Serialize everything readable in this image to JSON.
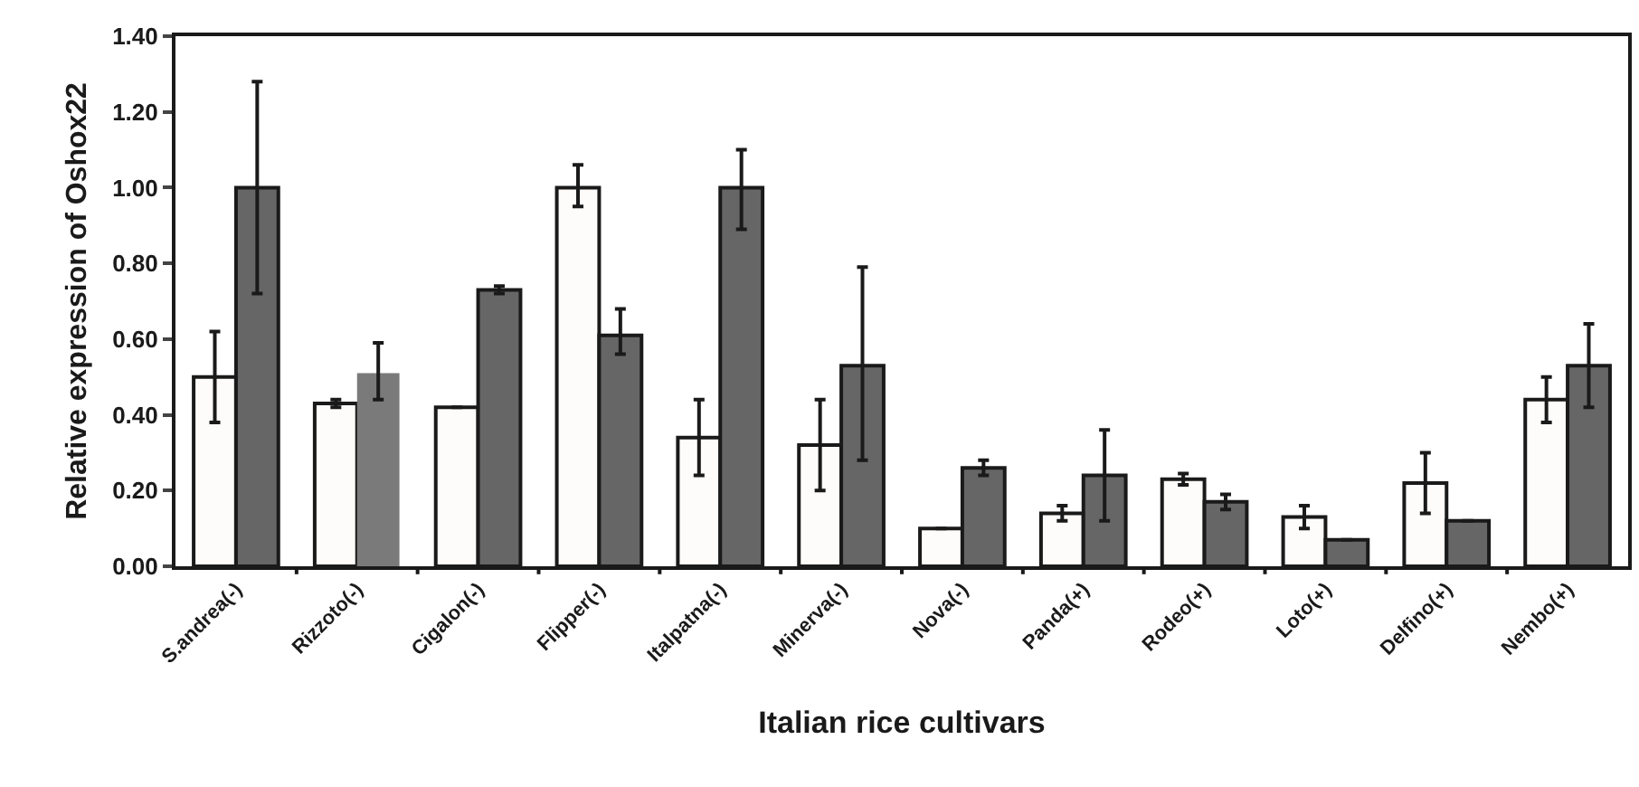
{
  "chart_data": {
    "type": "bar",
    "xlabel": "Italian rice cultivars",
    "ylabel": "Relative expression of Oshox22",
    "categories": [
      "S.andrea(-)",
      "Rizzoto(-)",
      "Cigalon(-)",
      "Flipper(-)",
      "Italpatna(-)",
      "Minerva(-)",
      "Nova(-)",
      "Panda(+)",
      "Rodeo(+)",
      "Loto(+)",
      "Delfino(+)",
      "Nembo(+)"
    ],
    "series": [
      {
        "color": "#fefcfa",
        "values": [
          0.5,
          0.43,
          0.42,
          1.0,
          0.34,
          0.32,
          0.1,
          0.14,
          0.23,
          0.13,
          0.22,
          0.44
        ],
        "errors": [
          [
            0.38,
            0.62
          ],
          0.01,
          null,
          [
            0.95,
            1.06
          ],
          [
            0.24,
            0.44
          ],
          [
            0.2,
            0.44
          ],
          null,
          0.02,
          0.015,
          0.03,
          [
            0.14,
            0.3
          ],
          [
            0.38,
            0.5
          ]
        ]
      },
      {
        "color": "#666666",
        "colors": [
          "#666666",
          "#7a7a7a",
          "#666666",
          "#666666",
          "#666666",
          "#666666",
          "#666666",
          "#666666",
          "#666666",
          "#666666",
          "#666666",
          "#666666"
        ],
        "values": [
          1.0,
          0.51,
          0.73,
          0.61,
          1.0,
          0.53,
          0.26,
          0.24,
          0.17,
          0.07,
          0.12,
          0.53
        ],
        "errors": [
          [
            0.72,
            1.28
          ],
          [
            0.44,
            0.59
          ],
          0.01,
          [
            0.56,
            0.68
          ],
          [
            0.89,
            1.1
          ],
          [
            0.28,
            0.79
          ],
          0.02,
          [
            0.12,
            0.36
          ],
          0.02,
          null,
          null,
          [
            0.42,
            0.64
          ]
        ]
      }
    ],
    "ylim": [
      0,
      1.4
    ],
    "yticks": [
      {
        "value": 0,
        "label": "0.00"
      },
      {
        "value": 0.2,
        "label": "0.20"
      },
      {
        "value": 0.4,
        "label": "0.40"
      },
      {
        "value": 0.6,
        "label": "0.60"
      },
      {
        "value": 0.8,
        "label": "0.80"
      },
      {
        "value": 1.0,
        "label": "1.00"
      },
      {
        "value": 1.2,
        "label": "1.20"
      },
      {
        "value": 1.4,
        "label": "1.40"
      }
    ]
  }
}
